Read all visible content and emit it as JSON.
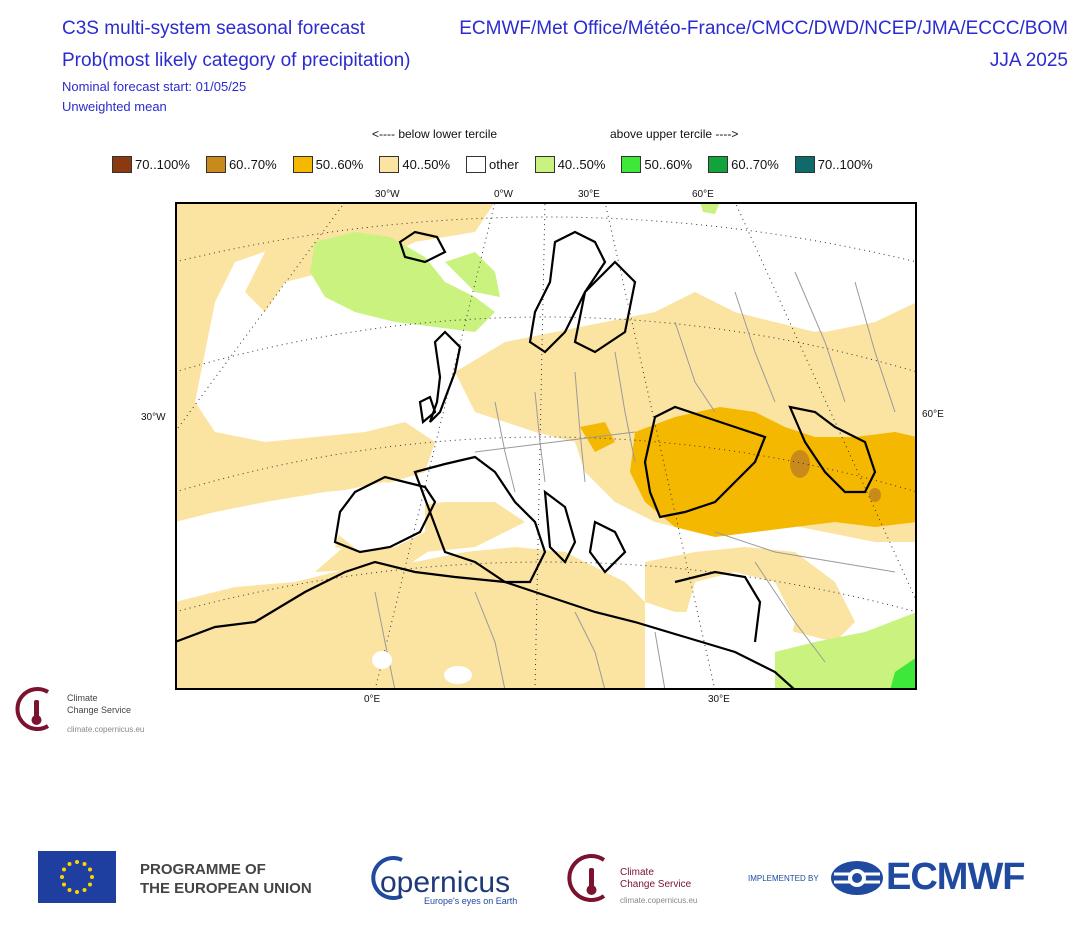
{
  "header": {
    "title": "C3S multi-system seasonal forecast",
    "subtitle": "Prob(most likely category of precipitation)",
    "forecast_start": "Nominal forecast start: 01/05/25",
    "weighting": "Unweighted mean",
    "centres": "ECMWF/Met Office/Météo-France/CMCC/DWD/NCEP/JMA/ECCC/BOM",
    "season": "JJA 2025"
  },
  "legend": {
    "below_label": "<---- below lower tercile",
    "above_label": "above upper tercile ---->",
    "items": [
      {
        "label": "70..100%",
        "color": "#8b3a0f"
      },
      {
        "label": "60..70%",
        "color": "#c98a1c"
      },
      {
        "label": "50..60%",
        "color": "#f5b800"
      },
      {
        "label": "40..50%",
        "color": "#fbe3a1"
      },
      {
        "label": "other",
        "color": "#ffffff"
      },
      {
        "label": "40..50%",
        "color": "#c9f27f"
      },
      {
        "label": "50..60%",
        "color": "#3ee83a"
      },
      {
        "label": "60..70%",
        "color": "#12a43a"
      },
      {
        "label": "70..100%",
        "color": "#0f6a6a"
      }
    ]
  },
  "map": {
    "lon_top": [
      "30°W",
      "0°W",
      "30°E",
      "60°E"
    ],
    "lon_bottom": [
      "0°E",
      "30°E"
    ],
    "lat_left": "30°W",
    "lat_right": "60°E"
  },
  "branding": {
    "c3s_line1": "Climate",
    "c3s_line2": "Change Service",
    "c3s_url": "climate.copernicus.eu",
    "eu_line1": "PROGRAMME OF",
    "eu_line2": "THE EUROPEAN UNION",
    "copernicus": "opernicus",
    "copernicus_tag": "Europe's eyes on Earth",
    "implemented_by": "IMPLEMENTED BY",
    "ecmwf": "ECMWF"
  }
}
